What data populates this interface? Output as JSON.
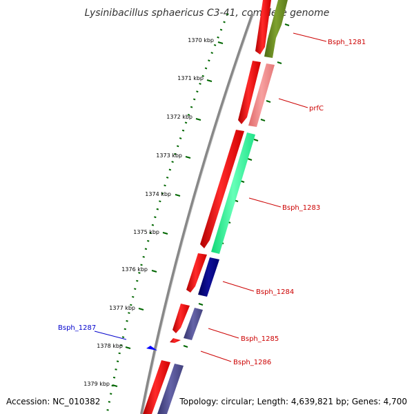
{
  "title": "Lysinibacillus sphaericus C3-41, complete genome",
  "accession": "Accession: NC_010382",
  "topology": "Topology: circular; Length: 4,639,821 bp; Genes: 4,700",
  "ticks": [
    "1370 kbp",
    "1371 kbp",
    "1372 kbp",
    "1373 kbp",
    "1374 kbp",
    "1375 kbp",
    "1376 kbp",
    "1377 kbp",
    "1378 kbp",
    "1379 kbp"
  ],
  "genes": [
    {
      "name": "Bsph_1281",
      "color": "#cc0000"
    },
    {
      "name": "prfC",
      "color": "#cc0000"
    },
    {
      "name": "Bsph_1283",
      "color": "#cc0000"
    },
    {
      "name": "Bsph_1284",
      "color": "#cc0000"
    },
    {
      "name": "Bsph_1285",
      "color": "#cc0000"
    },
    {
      "name": "Bsph_1286",
      "color": "#cc0000"
    },
    {
      "name": "Bsph_1287",
      "color": "#0000cc"
    }
  ],
  "colors": {
    "cds": "#ff0000",
    "backbone": "#888888",
    "ticks": "#006600",
    "olive": "#6b8e23",
    "pink": "#f08080",
    "aqua": "#33ff99",
    "navy": "#000080",
    "slate": "#4b4a8f",
    "blue": "#0000ff"
  }
}
